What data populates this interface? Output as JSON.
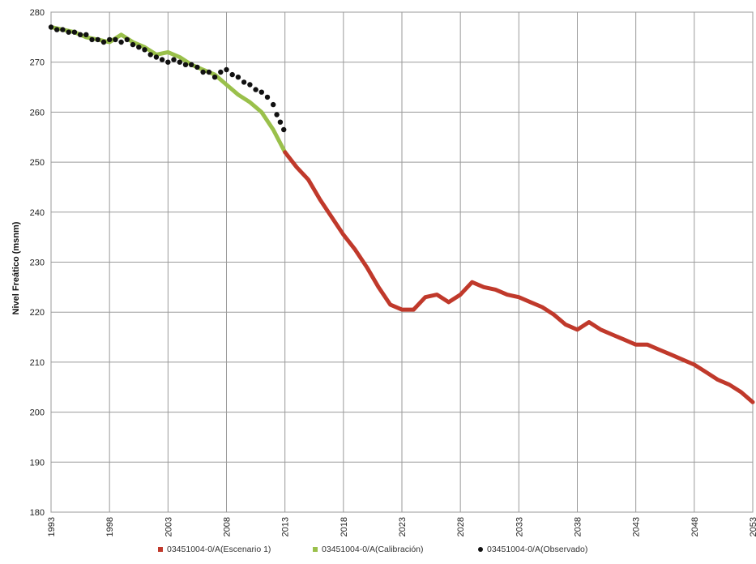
{
  "chart_data": {
    "type": "line",
    "title": "",
    "xlabel": "",
    "ylabel": "Nivel Freático (msnm)",
    "xlim": [
      1993,
      2053
    ],
    "ylim": [
      180,
      280
    ],
    "grid": true,
    "legend_position": "bottom",
    "x_ticks": [
      "1993",
      "1998",
      "2003",
      "2008",
      "2013",
      "2018",
      "2023",
      "2028",
      "2033",
      "2038",
      "2043",
      "2048",
      "2053"
    ],
    "y_ticks": [
      "180",
      "190",
      "200",
      "210",
      "220",
      "230",
      "240",
      "250",
      "260",
      "270",
      "280"
    ],
    "series": [
      {
        "name": "03451004-0/A(Escenario 1)",
        "color": "#c0392b",
        "style": "line",
        "x": [
          2013,
          2014,
          2015,
          2016,
          2017,
          2018,
          2019,
          2020,
          2021,
          2022,
          2023,
          2024,
          2025,
          2026,
          2027,
          2028,
          2029,
          2030,
          2031,
          2032,
          2033,
          2034,
          2035,
          2036,
          2037,
          2038,
          2039,
          2040,
          2041,
          2042,
          2043,
          2044,
          2045,
          2046,
          2047,
          2048,
          2049,
          2050,
          2051,
          2052,
          2053
        ],
        "y": [
          252,
          249,
          246.5,
          242.5,
          239,
          235.5,
          232.5,
          229,
          225,
          221.5,
          220.5,
          220.5,
          223,
          223.5,
          222,
          223.5,
          226,
          225,
          224.5,
          223.5,
          223,
          222,
          221,
          219.5,
          217.5,
          216.5,
          218,
          216.5,
          215.5,
          214.5,
          213.5,
          213.5,
          212.5,
          211.5,
          210.5,
          209.5,
          208,
          206.5,
          205.5,
          204,
          202
        ]
      },
      {
        "name": "03451004-0/A(Calibración)",
        "color": "#9ac04b",
        "style": "line",
        "x": [
          1993,
          1994,
          1995,
          1996,
          1997,
          1998,
          1999,
          2000,
          2001,
          2002,
          2003,
          2004,
          2005,
          2006,
          2007,
          2008,
          2009,
          2010,
          2011,
          2012,
          2013
        ],
        "y": [
          277,
          276.5,
          276,
          275,
          274.5,
          274,
          275.5,
          274,
          273,
          271.5,
          272,
          271,
          269.5,
          268.5,
          267.5,
          265.5,
          263.5,
          262,
          260,
          256.5,
          252
        ]
      },
      {
        "name": "03451004-0/A(Observado)",
        "color": "#111111",
        "style": "points",
        "x": [
          1993,
          1993.5,
          1994,
          1994.5,
          1995,
          1995.5,
          1996,
          1996.5,
          1997,
          1997.5,
          1998,
          1998.5,
          1999,
          1999.5,
          2000,
          2000.5,
          2001,
          2001.5,
          2002,
          2002.5,
          2003,
          2003.5,
          2004,
          2004.5,
          2005,
          2005.5,
          2006,
          2006.5,
          2007,
          2007.5,
          2008,
          2008.5,
          2009,
          2009.5,
          2010,
          2010.5,
          2011,
          2011.5,
          2012,
          2012.3,
          2012.6,
          2012.9
        ],
        "y": [
          277,
          276.5,
          276.5,
          276,
          276,
          275.5,
          275.5,
          274.5,
          274.5,
          274,
          274.5,
          274.5,
          274,
          274.5,
          273.5,
          273,
          272.5,
          271.5,
          271,
          270.5,
          270,
          270.5,
          270,
          269.5,
          269.5,
          269,
          268,
          268,
          267,
          268,
          268.5,
          267.5,
          267,
          266,
          265.5,
          264.5,
          264,
          263,
          261.5,
          259.5,
          258,
          256.5
        ]
      }
    ]
  }
}
